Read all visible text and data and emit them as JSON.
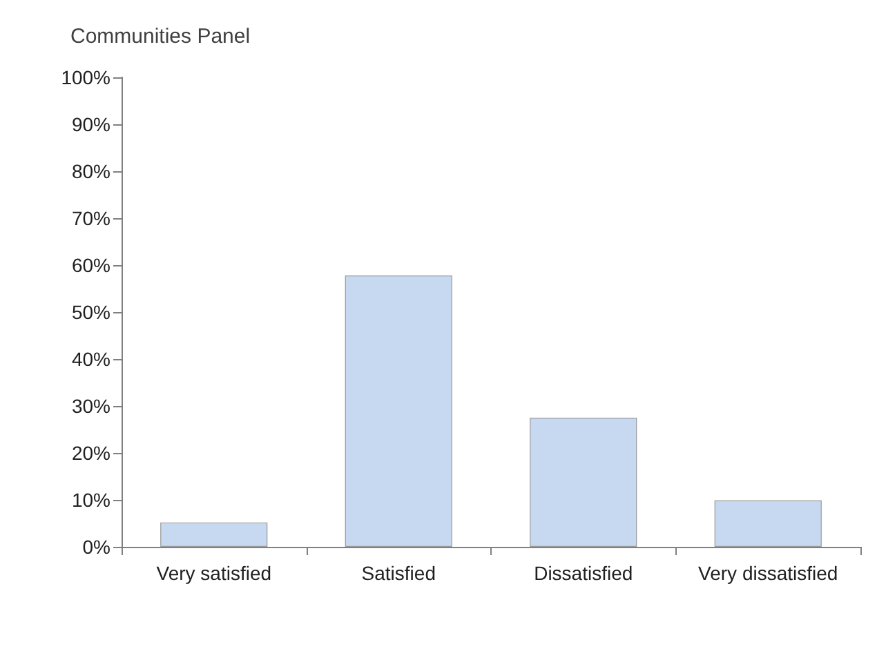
{
  "chart_data": {
    "type": "bar",
    "title": "Communities Panel",
    "categories": [
      "Very satisfied",
      "Satisfied",
      "Dissatisfied",
      "Very dissatisfied"
    ],
    "values": [
      5.2,
      57.8,
      27.5,
      9.9
    ],
    "color": "#c6d9f1",
    "ylim": [
      0,
      100
    ],
    "yticks": [
      {
        "value": 0,
        "label": "0%"
      },
      {
        "value": 10,
        "label": "10%"
      },
      {
        "value": 20,
        "label": "20%"
      },
      {
        "value": 30,
        "label": "30%"
      },
      {
        "value": 40,
        "label": "40%"
      },
      {
        "value": 50,
        "label": "50%"
      },
      {
        "value": 60,
        "label": "60%"
      },
      {
        "value": 70,
        "label": "70%"
      },
      {
        "value": 80,
        "label": "80%"
      },
      {
        "value": 90,
        "label": "90%"
      },
      {
        "value": 100,
        "label": "100%"
      }
    ],
    "grid": false
  }
}
